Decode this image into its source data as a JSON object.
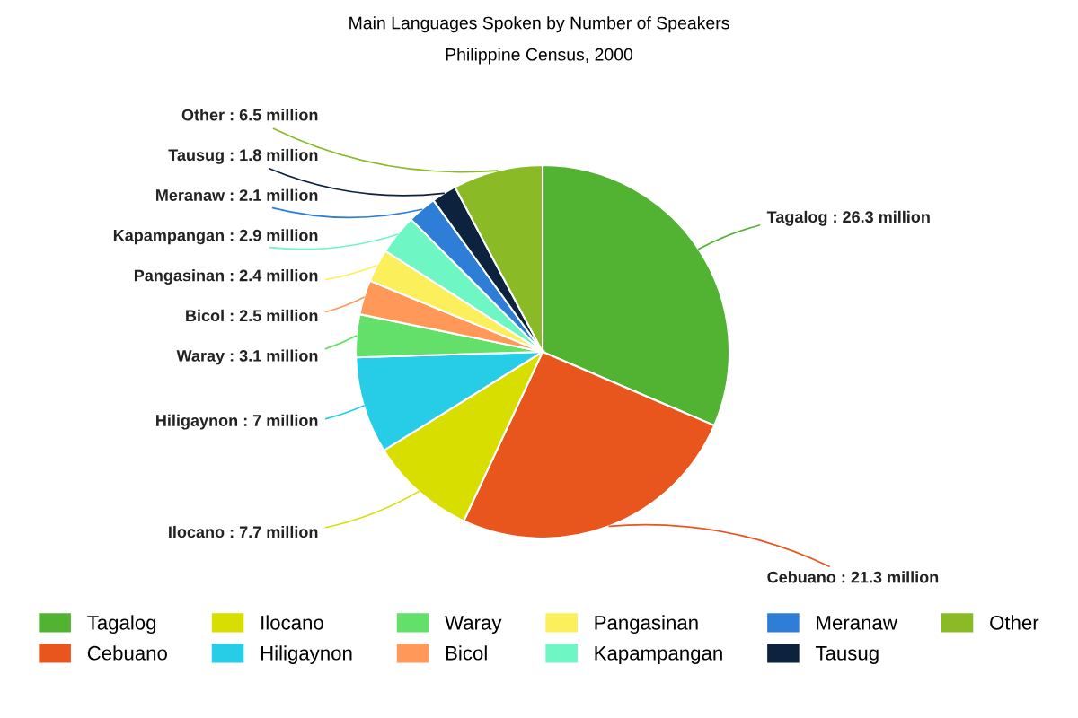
{
  "chart_data": {
    "type": "pie",
    "title": "Main Languages Spoken by Number of Speakers",
    "subtitle": "Philippine Census, 2000",
    "categories": [
      "Tagalog",
      "Cebuano",
      "Ilocano",
      "Hiligaynon",
      "Waray",
      "Bicol",
      "Pangasinan",
      "Kapampangan",
      "Meranaw",
      "Tausug",
      "Other"
    ],
    "values": [
      26.3,
      21.3,
      7.7,
      7,
      3.1,
      2.5,
      2.4,
      2.9,
      2.1,
      1.8,
      6.5
    ],
    "value_labels": [
      "Tagalog : 26.3 million",
      "Cebuano : 21.3 million",
      "Ilocano : 7.7 million",
      "Hiligaynon : 7 million",
      "Waray : 3.1 million",
      "Bicol : 2.5 million",
      "Pangasinan : 2.4 million",
      "Kapampangan : 2.9 million",
      "Meranaw : 2.1 million",
      "Tausug : 1.8 million",
      "Other : 6.5 million"
    ],
    "colors": [
      "#52b232",
      "#e8561e",
      "#d8df00",
      "#27cde6",
      "#62e06a",
      "#ff9859",
      "#fbf05c",
      "#6ef6c4",
      "#2e7ed8",
      "#0c223d",
      "#8aba26"
    ],
    "legend": "bottom"
  }
}
